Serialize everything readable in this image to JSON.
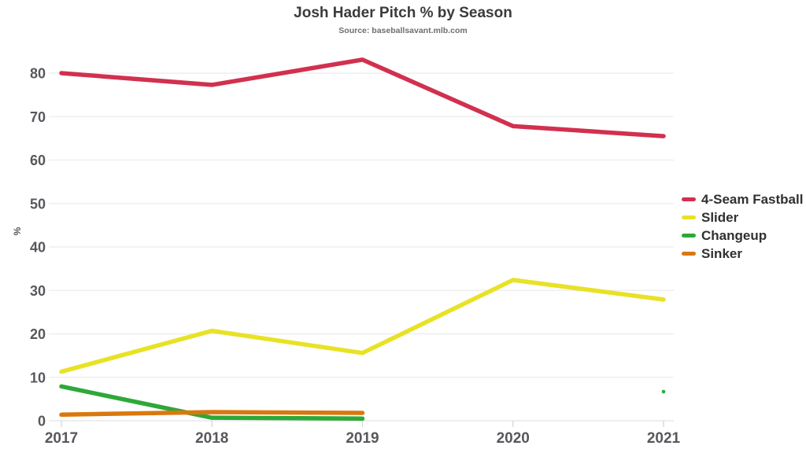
{
  "chart_data": {
    "type": "line",
    "title": "Josh Hader Pitch % by Season",
    "subtitle": "Source: baseballsavant.mlb.com",
    "xlabel": "",
    "ylabel": "%",
    "x": [
      2017,
      2018,
      2019,
      2020,
      2021
    ],
    "yticks": [
      0,
      10,
      20,
      30,
      40,
      50,
      60,
      70,
      80
    ],
    "ylim": [
      0,
      86
    ],
    "grid": true,
    "legend_position": "right",
    "series": [
      {
        "name": "4-Seam Fastball",
        "color": "#d2304f",
        "values": [
          80.0,
          77.3,
          83.1,
          67.8,
          65.5
        ]
      },
      {
        "name": "Slider",
        "color": "#e8e226",
        "values": [
          11.3,
          20.7,
          15.6,
          32.4,
          27.9
        ]
      },
      {
        "name": "Changeup",
        "color": "#2ea838",
        "values": [
          7.9,
          0.7,
          0.5,
          null,
          6.7
        ]
      },
      {
        "name": "Sinker",
        "color": "#d9780f",
        "values": [
          1.4,
          2.0,
          1.8,
          null,
          null
        ]
      }
    ]
  }
}
